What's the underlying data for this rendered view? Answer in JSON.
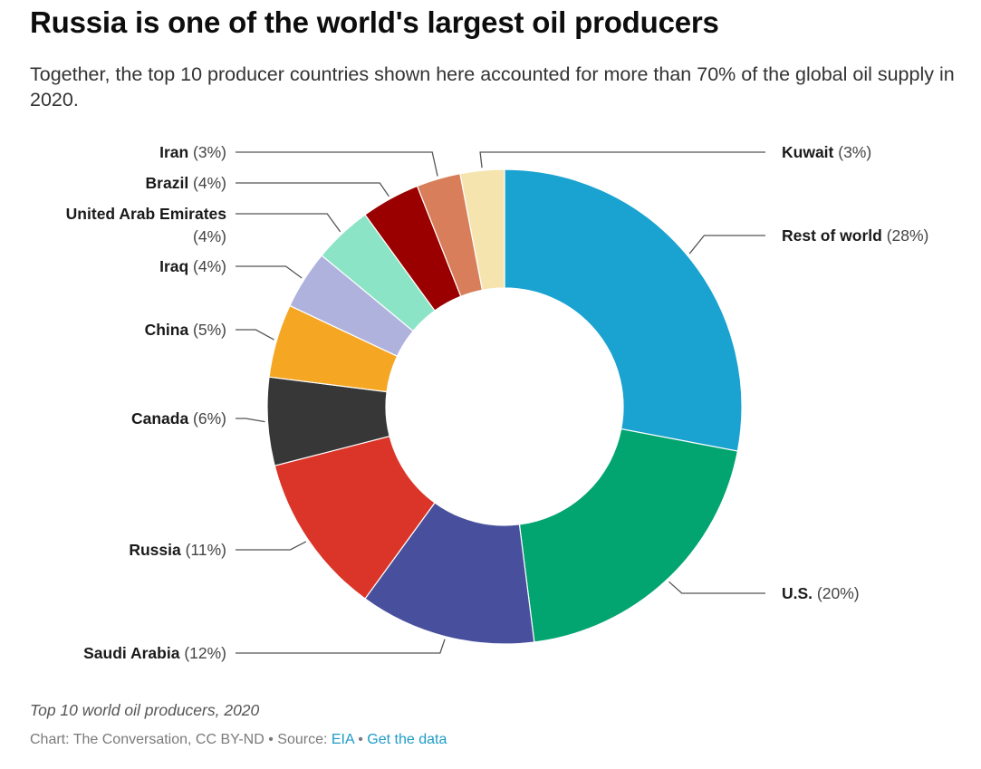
{
  "title": "Russia is one of the world's largest oil producers",
  "subtitle": "Together, the top 10 producer countries shown here accounted for more than 70% of the global oil supply in 2020.",
  "caption": "Top 10 world oil producers, 2020",
  "credit": {
    "prefix": "Chart: The Conversation, CC BY-ND",
    "separator": " • ",
    "source_label": "Source: ",
    "source_link": "EIA",
    "data_link": "Get the data"
  },
  "chart_data": {
    "type": "pie",
    "donut": true,
    "title": "Russia is one of the world's largest oil producers",
    "slices": [
      {
        "label": "Rest of world",
        "value": 28,
        "value_label": "(28%)",
        "color": "#1aa2d0"
      },
      {
        "label": "U.S.",
        "value": 20,
        "value_label": "(20%)",
        "color": "#02a470"
      },
      {
        "label": "Saudi Arabia",
        "value": 12,
        "value_label": "(12%)",
        "color": "#48509d"
      },
      {
        "label": "Russia",
        "value": 11,
        "value_label": "(11%)",
        "color": "#db3529"
      },
      {
        "label": "Canada",
        "value": 6,
        "value_label": "(6%)",
        "color": "#373737"
      },
      {
        "label": "China",
        "value": 5,
        "value_label": "(5%)",
        "color": "#f5a623"
      },
      {
        "label": "Iraq",
        "value": 4,
        "value_label": "(4%)",
        "color": "#afb2dc"
      },
      {
        "label": "United Arab Emirates",
        "value": 4,
        "value_label": "(4%)",
        "color": "#8ce4c6"
      },
      {
        "label": "Brazil",
        "value": 4,
        "value_label": "(4%)",
        "color": "#9b0000"
      },
      {
        "label": "Iran",
        "value": 3,
        "value_label": "(3%)",
        "color": "#d87e5a"
      },
      {
        "label": "Kuwait",
        "value": 3,
        "value_label": "(3%)",
        "color": "#f5e4ae"
      }
    ]
  }
}
